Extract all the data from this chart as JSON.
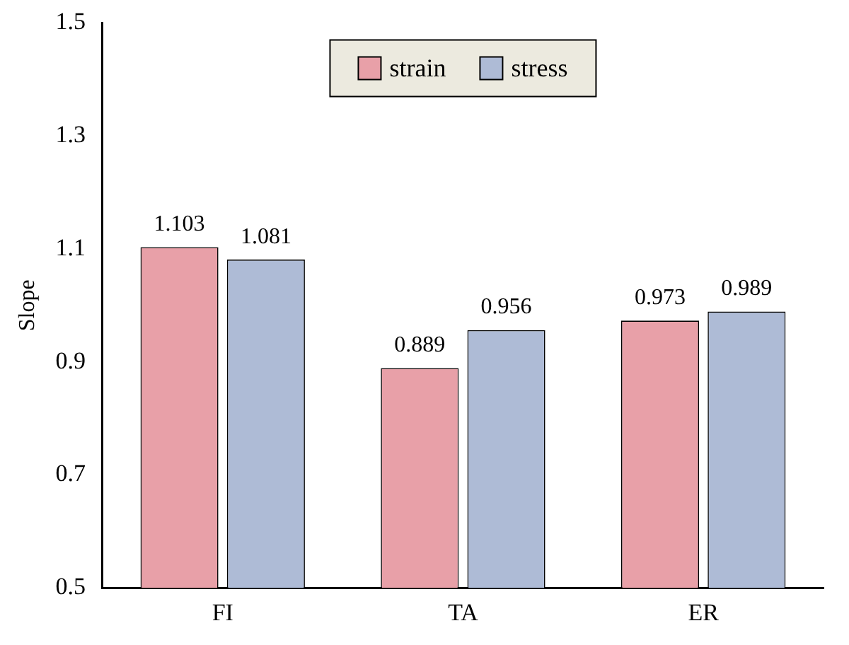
{
  "chart_data": {
    "type": "bar",
    "ylabel": "Slope",
    "categories": [
      "FI",
      "TA",
      "ER"
    ],
    "series": [
      {
        "name": "strain",
        "color": "#e8a0a8",
        "values": [
          1.103,
          0.889,
          0.973
        ]
      },
      {
        "name": "stress",
        "color": "#aebbd6",
        "values": [
          1.081,
          0.956,
          0.989
        ]
      }
    ],
    "ylim": [
      0.5,
      1.5
    ],
    "yticks": [
      0.5,
      0.7,
      0.9,
      1.1,
      1.3,
      1.5
    ],
    "data_labels": true,
    "legend": "top",
    "grid": false
  }
}
